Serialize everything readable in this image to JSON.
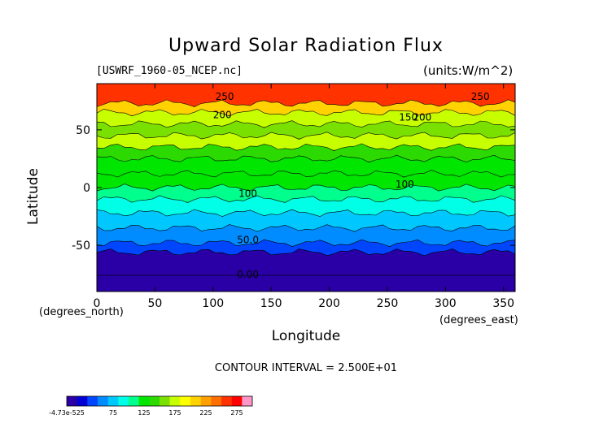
{
  "chart_data": {
    "type": "heatmap",
    "title": "Upward Solar Radiation Flux",
    "file_label": "[USWRF_1960-05_NCEP.nc]",
    "units_label": "(units:W/m^2)",
    "xlabel": "Longitude",
    "ylabel": "Latitude",
    "x_unit_note": "(degrees_east)",
    "y_unit_note": "(degrees_north)",
    "xlim": [
      0,
      360
    ],
    "ylim": [
      -90,
      90
    ],
    "x_ticks": [
      0,
      50,
      100,
      150,
      200,
      250,
      300,
      350
    ],
    "y_ticks": [
      50,
      0,
      -50
    ],
    "contour_interval_text": "CONTOUR INTERVAL = 2.500E+01",
    "contour_labels": [
      {
        "text": "250",
        "lon": 110,
        "lat": 76
      },
      {
        "text": "250",
        "lon": 330,
        "lat": 76
      },
      {
        "text": "200",
        "lon": 108,
        "lat": 60
      },
      {
        "text": "150",
        "lon": 268,
        "lat": 58
      },
      {
        "text": "200",
        "lon": 280,
        "lat": 58
      },
      {
        "text": "100",
        "lon": 130,
        "lat": -8
      },
      {
        "text": "100",
        "lon": 265,
        "lat": 0
      },
      {
        "text": "50.0",
        "lon": 130,
        "lat": -48
      },
      {
        "text": "0.00",
        "lon": 130,
        "lat": -78
      }
    ],
    "zonal_bands": [
      {
        "lat_top": 90,
        "lat_bottom": 73,
        "value": 260
      },
      {
        "lat_top": 73,
        "lat_bottom": 65,
        "value": 215
      },
      {
        "lat_top": 65,
        "lat_bottom": 55,
        "value": 175
      },
      {
        "lat_top": 55,
        "lat_bottom": 45,
        "value": 160
      },
      {
        "lat_top": 45,
        "lat_bottom": 35,
        "value": 175
      },
      {
        "lat_top": 35,
        "lat_bottom": 25,
        "value": 145
      },
      {
        "lat_top": 25,
        "lat_bottom": 12,
        "value": 130
      },
      {
        "lat_top": 12,
        "lat_bottom": 0,
        "value": 125
      },
      {
        "lat_top": 0,
        "lat_bottom": -10,
        "value": 115
      },
      {
        "lat_top": -10,
        "lat_bottom": -22,
        "value": 95
      },
      {
        "lat_top": -22,
        "lat_bottom": -35,
        "value": 80
      },
      {
        "lat_top": -35,
        "lat_bottom": -48,
        "value": 60
      },
      {
        "lat_top": -48,
        "lat_bottom": -56,
        "value": 35
      },
      {
        "lat_top": -56,
        "lat_bottom": -76,
        "value": 10
      },
      {
        "lat_top": -76,
        "lat_bottom": -90,
        "value": -5
      }
    ],
    "colorbar": {
      "tick_labels": [
        "-4.73e-525",
        "75",
        "125",
        "175",
        "225",
        "275"
      ],
      "tick_values": [
        0,
        75,
        125,
        175,
        225,
        275
      ],
      "range": [
        0,
        300
      ],
      "colors": [
        "#2a00a6",
        "#0000d6",
        "#0046ff",
        "#008cff",
        "#00c8ff",
        "#00ffe6",
        "#00ff8c",
        "#00e600",
        "#2cd900",
        "#7ae000",
        "#c8ff00",
        "#ffff00",
        "#ffd200",
        "#ffa000",
        "#ff6e00",
        "#ff3200",
        "#ff0000",
        "#ff96c8"
      ]
    }
  }
}
